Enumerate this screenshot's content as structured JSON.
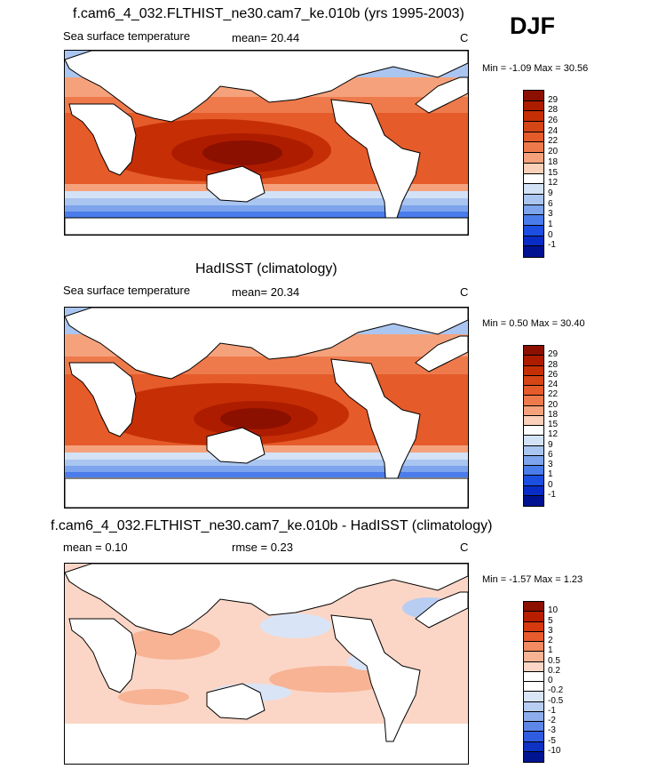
{
  "season": "DJF",
  "panels": [
    {
      "title": "f.cam6_4_032.FLTHIST_ne30.cam7_ke.010b (yrs 1995-2003)",
      "left_label": "Sea surface temperature",
      "mid_label": "mean=  20.44",
      "unit": "C",
      "minmax": "Min =  -1.09 Max =  30.56",
      "colorbar": {
        "labels": [
          "29",
          "28",
          "26",
          "24",
          "22",
          "20",
          "18",
          "15",
          "12",
          "9",
          "6",
          "3",
          "1",
          "0",
          "-1"
        ],
        "colors": [
          "#8c1000",
          "#ae1c00",
          "#c62f06",
          "#d64516",
          "#e55b2a",
          "#ee7a4c",
          "#f5a27c",
          "#fbd0b8",
          "#ffffff",
          "#d3e2f7",
          "#aac5f0",
          "#7da4ec",
          "#4a7ceb",
          "#1d4ee2",
          "#0a2cc6",
          "#001292"
        ]
      },
      "map_kind": "sst_model"
    },
    {
      "title": "HadISST (climatology)",
      "left_label": "Sea surface temperature",
      "mid_label": "mean=  20.34",
      "unit": "C",
      "minmax": "Min =   0.50 Max =  30.40",
      "colorbar": {
        "labels": [
          "29",
          "28",
          "26",
          "24",
          "22",
          "20",
          "18",
          "15",
          "12",
          "9",
          "6",
          "3",
          "1",
          "0",
          "-1"
        ],
        "colors": [
          "#8c1000",
          "#ae1c00",
          "#c62f06",
          "#d64516",
          "#e55b2a",
          "#ee7a4c",
          "#f5a27c",
          "#fbd0b8",
          "#ffffff",
          "#d3e2f7",
          "#aac5f0",
          "#7da4ec",
          "#4a7ceb",
          "#1d4ee2",
          "#0a2cc6",
          "#001292"
        ]
      },
      "map_kind": "sst_obs"
    },
    {
      "title": "f.cam6_4_032.FLTHIST_ne30.cam7_ke.010b - HadISST (climatology)",
      "left_label": "mean =   0.10",
      "mid_label": "rmse =   0.23",
      "unit": "C",
      "minmax": "Min =  -1.57 Max =   1.23",
      "colorbar": {
        "labels": [
          "10",
          "5",
          "3",
          "2",
          "1",
          "0.5",
          "0.2",
          "0",
          "-0.2",
          "-0.5",
          "-1",
          "-2",
          "-3",
          "-5",
          "-10"
        ],
        "colors": [
          "#8c1000",
          "#b81d00",
          "#d6380f",
          "#e85b2d",
          "#f28a62",
          "#f7b394",
          "#fbd6c6",
          "#ffffff",
          "#ffffff",
          "#d9e4f7",
          "#b8cdf2",
          "#8eadec",
          "#5e86e8",
          "#2f5ce0",
          "#0d32c4",
          "#001492"
        ]
      },
      "map_kind": "diff"
    }
  ]
}
